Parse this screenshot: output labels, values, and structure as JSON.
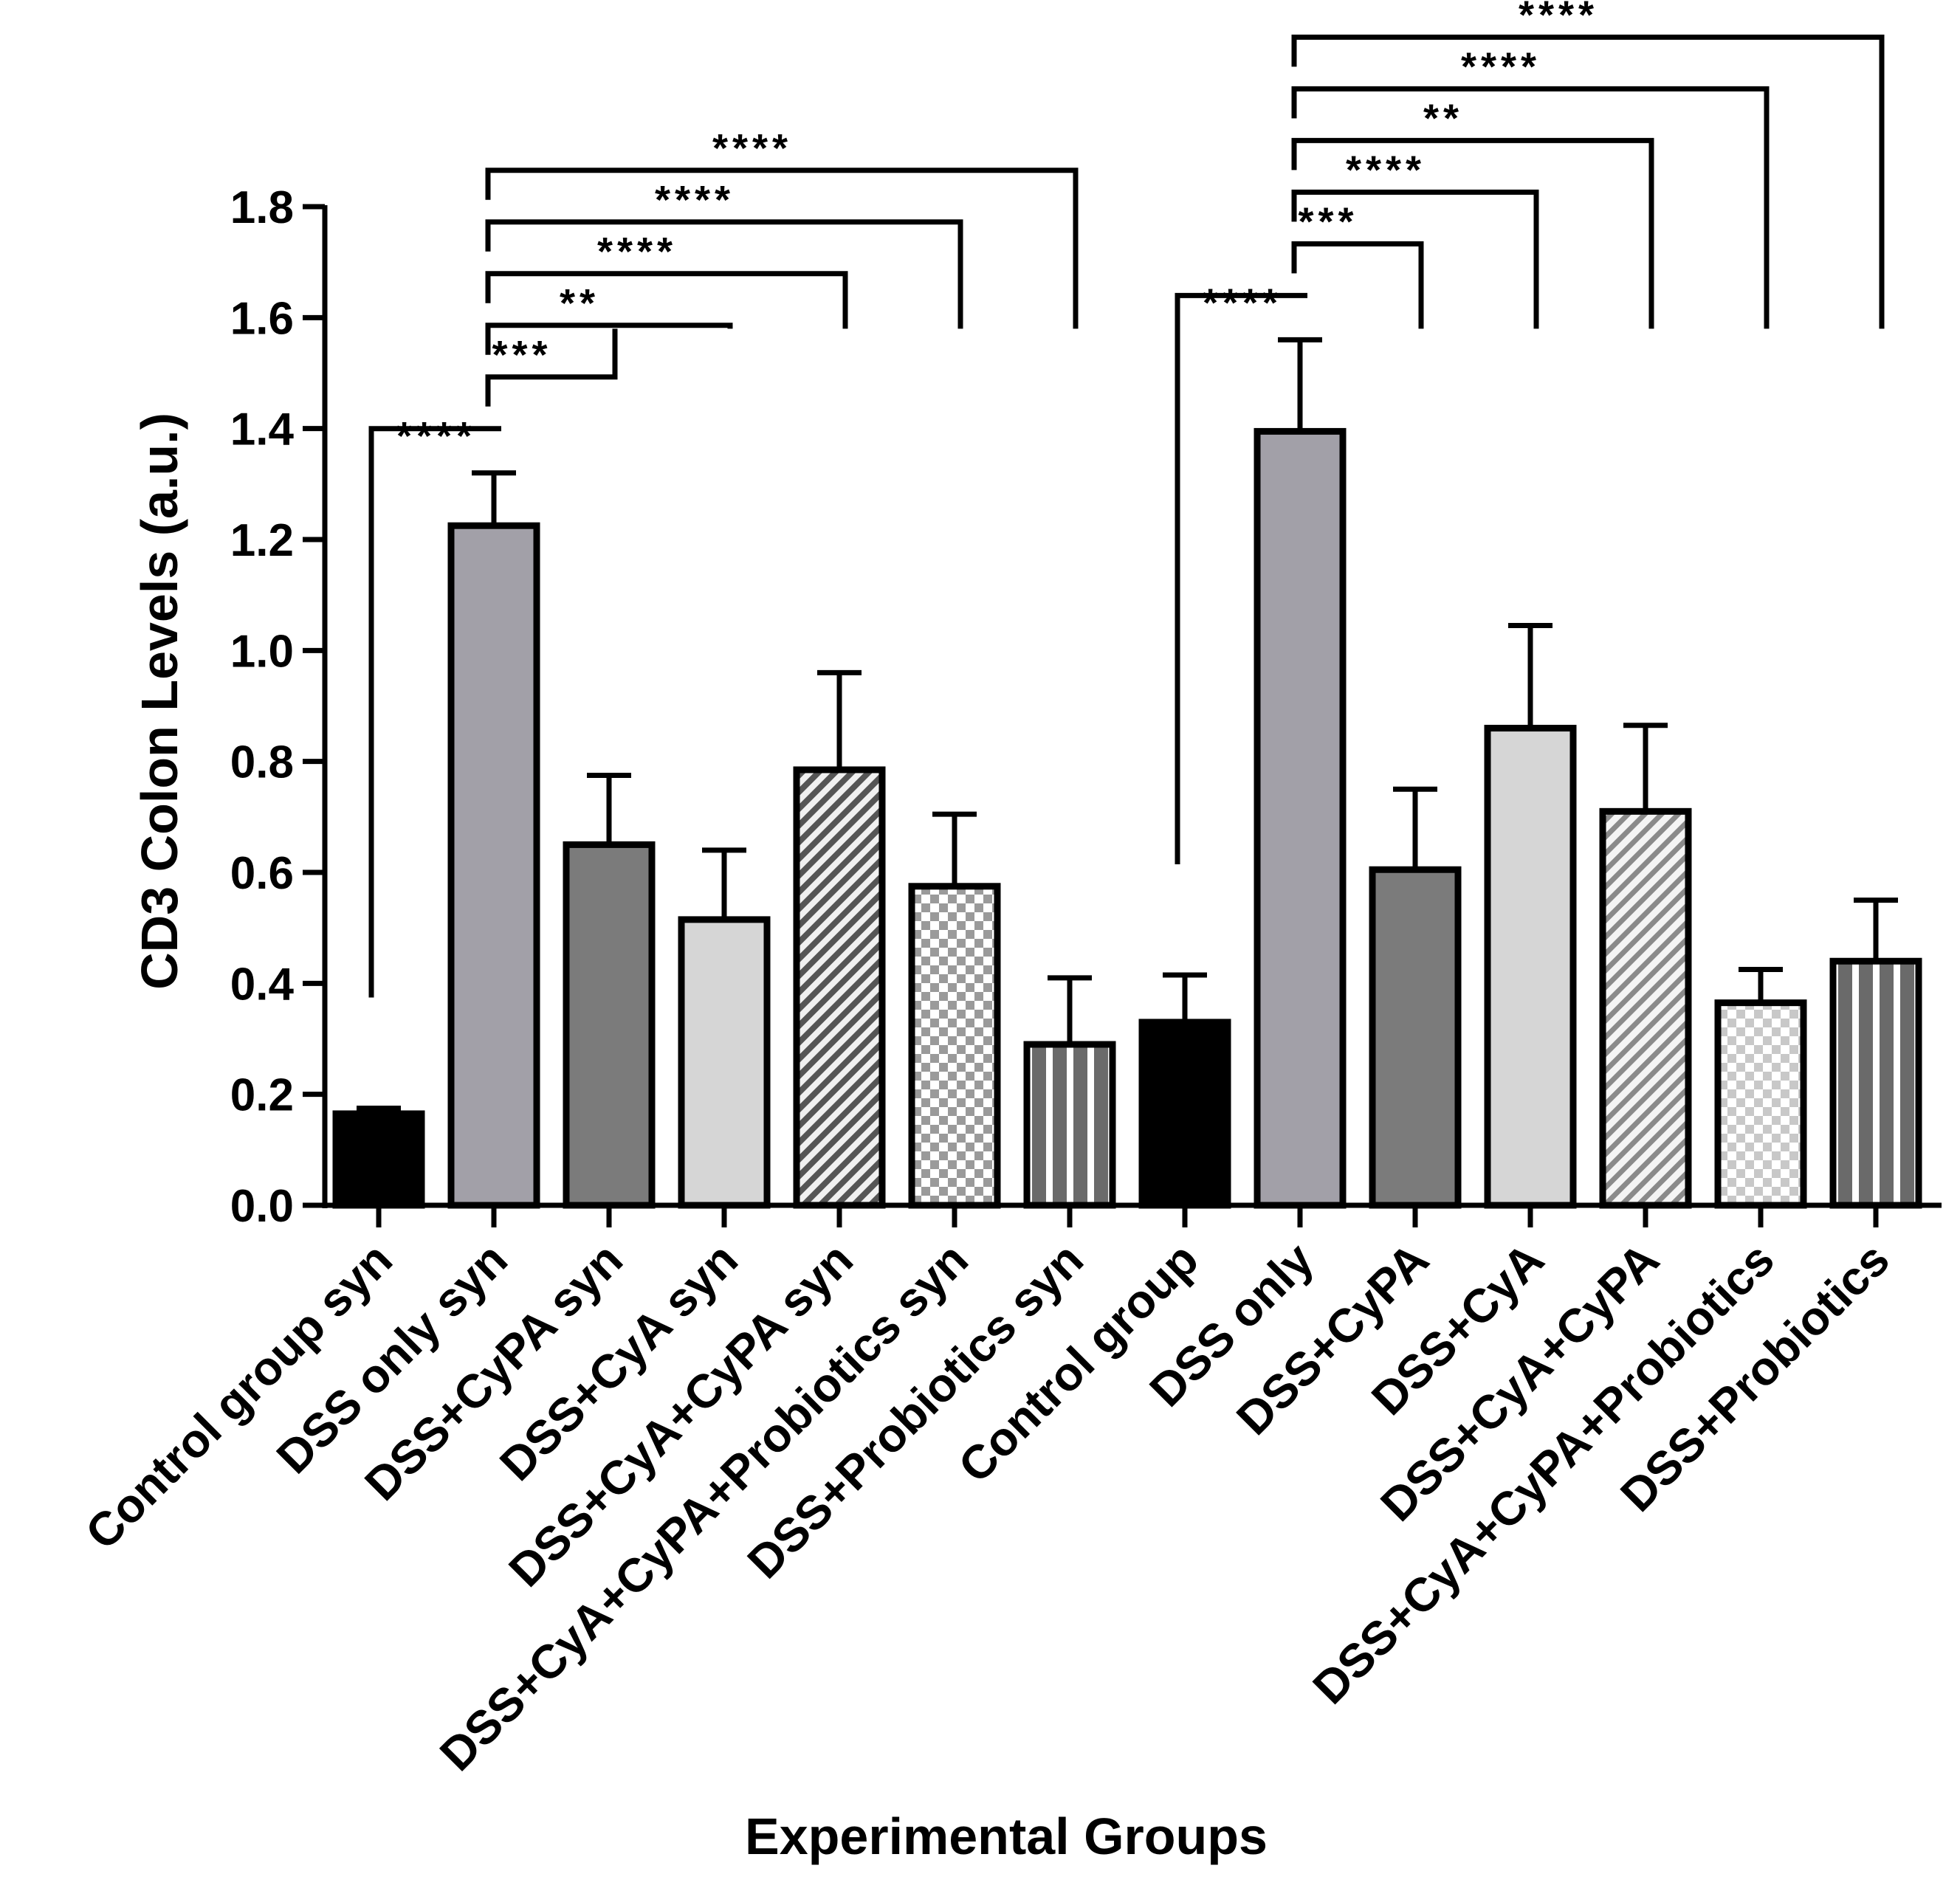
{
  "chart_data": {
    "type": "bar",
    "title": "",
    "xlabel": "Experimental Groups",
    "ylabel": "CD3 Colon Levels (a.u.)",
    "ylim": [
      0,
      1.8
    ],
    "yticks": [
      "0.0",
      "0.2",
      "0.4",
      "0.6",
      "0.8",
      "1.0",
      "1.2",
      "1.4",
      "1.6",
      "1.8"
    ],
    "grid": false,
    "categories": [
      "Control group syn",
      "DSS only syn",
      "DSS+CyPA syn",
      "DSS+CyA syn",
      "DSS+CyA+CyPA syn",
      "DSS+CyA+CyPA+Probiotics syn",
      "DSS+Probiotics syn",
      "Control group",
      "DSS only",
      "DSS+CyPA",
      "DSS+CyA",
      "DSS+CyA+CyPA",
      "DSS+CyA+CyPA+Probiotics",
      "DSS+Probiotics"
    ],
    "values": [
      0.165,
      1.225,
      0.65,
      0.515,
      0.785,
      0.575,
      0.29,
      0.33,
      1.395,
      0.605,
      0.86,
      0.71,
      0.365,
      0.44
    ],
    "errors": [
      0.01,
      0.095,
      0.125,
      0.125,
      0.175,
      0.13,
      0.12,
      0.085,
      0.165,
      0.145,
      0.185,
      0.155,
      0.06,
      0.11
    ],
    "fills": [
      "black",
      "medium-gray",
      "dark-gray",
      "light-gray",
      "diagonal-hatch",
      "checker",
      "vertical-stripes",
      "black",
      "medium-gray",
      "dark-gray",
      "light-gray",
      "diagonal-hatch-light",
      "checker-light",
      "vertical-stripes"
    ],
    "colors": {
      "black": "#000000",
      "medium_gray": "#a2a0a8",
      "dark_gray": "#7b7b7b",
      "light_gray": "#d6d6d6",
      "hatch_dark": "#555555",
      "hatch_light": "#8a8a8a",
      "checker_dark": "#9a9a9a",
      "checker_light": "#c8c8c8",
      "stripe": "#6a6a6a"
    },
    "significance": [
      {
        "from": 0,
        "to": 1,
        "label": "****"
      },
      {
        "from": 1,
        "to": 2,
        "label": "***"
      },
      {
        "from": 1,
        "to": 3,
        "label": "**"
      },
      {
        "from": 1,
        "to": 4,
        "label": "****"
      },
      {
        "from": 1,
        "to": 5,
        "label": "****"
      },
      {
        "from": 1,
        "to": 6,
        "label": "****"
      },
      {
        "from": 7,
        "to": 8,
        "label": "****"
      },
      {
        "from": 8,
        "to": 9,
        "label": "***"
      },
      {
        "from": 8,
        "to": 10,
        "label": "****"
      },
      {
        "from": 8,
        "to": 11,
        "label": "**"
      },
      {
        "from": 8,
        "to": 12,
        "label": "****"
      },
      {
        "from": 8,
        "to": 13,
        "label": "****"
      }
    ]
  }
}
